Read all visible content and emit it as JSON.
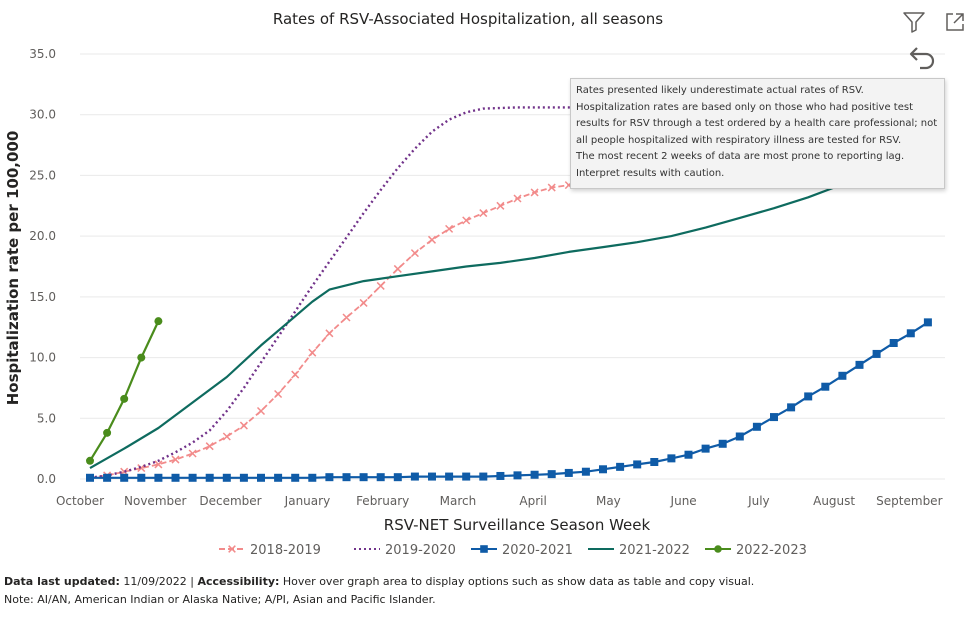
{
  "chart_data": {
    "type": "line",
    "title": "Rates of RSV-Associated Hospitalization, all seasons",
    "xlabel": "RSV-NET Surveillance Season Week",
    "ylabel": "Hospitalization rate per 100,000",
    "ylim": [
      0,
      35
    ],
    "yticks": [
      "0.0",
      "5.0",
      "10.0",
      "15.0",
      "20.0",
      "25.0",
      "30.0",
      "35.0"
    ],
    "xlim": [
      0,
      50
    ],
    "xticks": [
      {
        "label": "October",
        "week": 0
      },
      {
        "label": "November",
        "week": 4.4
      },
      {
        "label": "December",
        "week": 8.8
      },
      {
        "label": "January",
        "week": 13.3
      },
      {
        "label": "February",
        "week": 17.7
      },
      {
        "label": "March",
        "week": 22.1
      },
      {
        "label": "April",
        "week": 26.5
      },
      {
        "label": "May",
        "week": 30.9
      },
      {
        "label": "June",
        "week": 35.3
      },
      {
        "label": "July",
        "week": 39.7
      },
      {
        "label": "August",
        "week": 44.1
      },
      {
        "label": "September",
        "week": 48.5
      }
    ],
    "grid": true,
    "legend_position": "bottom",
    "series": [
      {
        "name": "2018-2019",
        "color": "#f28b8b",
        "style": "dashed-x",
        "points": [
          [
            0,
            0.1
          ],
          [
            1,
            0.3
          ],
          [
            2,
            0.6
          ],
          [
            3,
            0.9
          ],
          [
            4,
            1.2
          ],
          [
            5,
            1.6
          ],
          [
            6,
            2.1
          ],
          [
            7,
            2.7
          ],
          [
            8,
            3.5
          ],
          [
            9,
            4.4
          ],
          [
            10,
            5.6
          ],
          [
            11,
            7.0
          ],
          [
            12,
            8.6
          ],
          [
            13,
            10.4
          ],
          [
            14,
            12.0
          ],
          [
            15,
            13.3
          ],
          [
            16,
            14.5
          ],
          [
            17,
            15.9
          ],
          [
            18,
            17.3
          ],
          [
            19,
            18.6
          ],
          [
            20,
            19.7
          ],
          [
            21,
            20.6
          ],
          [
            22,
            21.3
          ],
          [
            23,
            21.9
          ],
          [
            24,
            22.5
          ],
          [
            25,
            23.1
          ],
          [
            26,
            23.6
          ],
          [
            27,
            24.0
          ],
          [
            28,
            24.2
          ],
          [
            29,
            24.3
          ]
        ]
      },
      {
        "name": "2019-2020",
        "color": "#71328a",
        "style": "dotted",
        "points": [
          [
            0,
            0.1
          ],
          [
            1,
            0.3
          ],
          [
            2,
            0.6
          ],
          [
            3,
            1.0
          ],
          [
            4,
            1.5
          ],
          [
            5,
            2.2
          ],
          [
            6,
            3.0
          ],
          [
            7,
            4.0
          ],
          [
            8,
            5.6
          ],
          [
            9,
            7.5
          ],
          [
            10,
            9.6
          ],
          [
            11,
            11.7
          ],
          [
            12,
            13.8
          ],
          [
            13,
            15.9
          ],
          [
            14,
            17.9
          ],
          [
            15,
            19.9
          ],
          [
            16,
            21.9
          ],
          [
            17,
            23.8
          ],
          [
            18,
            25.6
          ],
          [
            19,
            27.2
          ],
          [
            20,
            28.6
          ],
          [
            21,
            29.6
          ],
          [
            22,
            30.2
          ],
          [
            23,
            30.5
          ],
          [
            24,
            30.55
          ],
          [
            25,
            30.6
          ],
          [
            26,
            30.6
          ],
          [
            27,
            30.6
          ],
          [
            28,
            30.6
          ],
          [
            29,
            30.6
          ],
          [
            30,
            30.6
          ],
          [
            31,
            30.6
          ],
          [
            32,
            30.6
          ],
          [
            33,
            30.6
          ]
        ]
      },
      {
        "name": "2020-2021",
        "color": "#0f5ba7",
        "style": "solid-square",
        "points": [
          [
            0,
            0.1
          ],
          [
            1,
            0.1
          ],
          [
            2,
            0.1
          ],
          [
            3,
            0.1
          ],
          [
            4,
            0.1
          ],
          [
            5,
            0.1
          ],
          [
            6,
            0.1
          ],
          [
            7,
            0.1
          ],
          [
            8,
            0.1
          ],
          [
            9,
            0.1
          ],
          [
            10,
            0.1
          ],
          [
            11,
            0.1
          ],
          [
            12,
            0.1
          ],
          [
            13,
            0.1
          ],
          [
            14,
            0.15
          ],
          [
            15,
            0.15
          ],
          [
            16,
            0.15
          ],
          [
            17,
            0.15
          ],
          [
            18,
            0.15
          ],
          [
            19,
            0.2
          ],
          [
            20,
            0.2
          ],
          [
            21,
            0.2
          ],
          [
            22,
            0.2
          ],
          [
            23,
            0.2
          ],
          [
            24,
            0.25
          ],
          [
            25,
            0.3
          ],
          [
            26,
            0.35
          ],
          [
            27,
            0.4
          ],
          [
            28,
            0.5
          ],
          [
            29,
            0.6
          ],
          [
            30,
            0.8
          ],
          [
            31,
            1.0
          ],
          [
            32,
            1.2
          ],
          [
            33,
            1.4
          ],
          [
            34,
            1.7
          ],
          [
            35,
            2.0
          ],
          [
            36,
            2.5
          ],
          [
            37,
            2.9
          ],
          [
            38,
            3.5
          ],
          [
            39,
            4.3
          ],
          [
            40,
            5.1
          ],
          [
            41,
            5.9
          ],
          [
            42,
            6.8
          ],
          [
            43,
            7.6
          ],
          [
            44,
            8.5
          ],
          [
            45,
            9.4
          ],
          [
            46,
            10.3
          ],
          [
            47,
            11.2
          ],
          [
            48,
            12.0
          ],
          [
            49,
            12.9
          ]
        ]
      },
      {
        "name": "2021-2022",
        "color": "#0e6b5f",
        "style": "solid",
        "points": [
          [
            0,
            0.9
          ],
          [
            2,
            2.5
          ],
          [
            4,
            4.2
          ],
          [
            6,
            6.3
          ],
          [
            8,
            8.4
          ],
          [
            10,
            11.0
          ],
          [
            12,
            13.4
          ],
          [
            13,
            14.6
          ],
          [
            14,
            15.6
          ],
          [
            16,
            16.3
          ],
          [
            18,
            16.7
          ],
          [
            20,
            17.1
          ],
          [
            22,
            17.5
          ],
          [
            24,
            17.8
          ],
          [
            26,
            18.2
          ],
          [
            28,
            18.7
          ],
          [
            30,
            19.1
          ],
          [
            32,
            19.5
          ],
          [
            34,
            20.0
          ],
          [
            36,
            20.7
          ],
          [
            38,
            21.5
          ],
          [
            40,
            22.3
          ],
          [
            42,
            23.2
          ],
          [
            43.5,
            24.0
          ]
        ]
      },
      {
        "name": "2022-2023",
        "color": "#4a8c1c",
        "style": "solid-dot",
        "points": [
          [
            0,
            1.5
          ],
          [
            1,
            3.8
          ],
          [
            2,
            6.6
          ],
          [
            3,
            10.0
          ],
          [
            4,
            13.0
          ]
        ]
      }
    ]
  },
  "tooltip": {
    "lines": [
      "Rates presented likely underestimate actual rates of RSV.",
      "Hospitalization rates are based only on those who had positive test results for RSV through a test ordered by a health care professional; not all people hospitalized with respiratory illness are tested for RSV.",
      "The most recent 2 weeks of data are most prone to reporting lag. Interpret results with caution."
    ]
  },
  "footer": {
    "updated_label": "Data last updated:",
    "updated_value": " 11/09/2022 | ",
    "accessibility_label": "Accessibility:",
    "accessibility_text": " Hover over graph area to display options such as show data as table and copy visual.",
    "note": "Note: AI/AN, American Indian or Alaska Native; A/PI, Asian and Pacific Islander."
  },
  "icons": {
    "filter": "filter-icon",
    "focus_mode": "focus-mode-icon",
    "back": "back-arrow-icon"
  }
}
